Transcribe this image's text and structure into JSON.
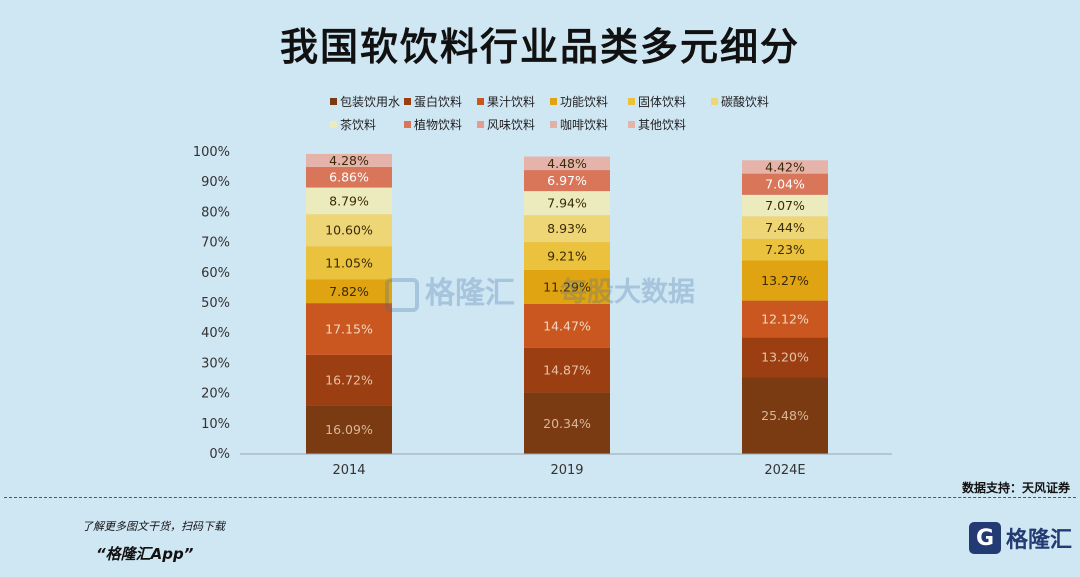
{
  "title": "我国软饮料行业品类多元细分",
  "source": "数据支持：天风证券",
  "promo": {
    "line1": "了解更多图文干货，扫码下载",
    "line2": "“格隆汇App”"
  },
  "brand": {
    "logo_letter": "G",
    "name": "格隆汇"
  },
  "watermarks": [
    "格隆汇",
    "每股大数据"
  ],
  "chart_data": {
    "type": "bar",
    "stacked": true,
    "percent_stacked": true,
    "title": "我国软饮料行业品类多元细分",
    "categories": [
      "2014",
      "2019",
      "2024E"
    ],
    "ylim": [
      0,
      100
    ],
    "yticks": [
      "0%",
      "10%",
      "20%",
      "30%",
      "40%",
      "50%",
      "60%",
      "70%",
      "80%",
      "90%",
      "100%"
    ],
    "legend_position": "top",
    "series": [
      {
        "name": "包装饮用水",
        "color": "#7a3b12",
        "label_color": "#d8b79a",
        "values": [
          16.09,
          20.34,
          25.48
        ]
      },
      {
        "name": "蛋白饮料",
        "color": "#9b3e12",
        "label_color": "#e6c3a8",
        "values": [
          16.72,
          14.87,
          13.2
        ]
      },
      {
        "name": "果汁饮料",
        "color": "#c9571f",
        "label_color": "#f5d6c0",
        "values": [
          17.15,
          14.47,
          12.12
        ]
      },
      {
        "name": "功能饮料",
        "color": "#e0a412",
        "label_color": "#3a2a08",
        "values": [
          7.82,
          11.29,
          13.27
        ]
      },
      {
        "name": "固体饮料",
        "color": "#ebc23e",
        "label_color": "#3a2a08",
        "values": [
          11.05,
          9.21,
          7.23
        ]
      },
      {
        "name": "碳酸饮料",
        "color": "#eed576",
        "label_color": "#3a2a08",
        "values": [
          10.6,
          8.93,
          7.44
        ]
      },
      {
        "name": "茶饮料",
        "color": "#ecebbe",
        "label_color": "#3a2a08",
        "values": [
          8.79,
          7.94,
          7.07
        ]
      },
      {
        "name": "植物饮料",
        "color": "#d9765a",
        "label_color": "#ffffff",
        "values": [
          6.86,
          6.97,
          7.04
        ]
      },
      {
        "name": "风味饮料",
        "color": "#e39c8e",
        "label_color": "#3a2a08",
        "values": [
          0,
          0,
          0
        ]
      },
      {
        "name": "咖啡饮料",
        "color": "#e2b0a6",
        "label_color": "#3a2a08",
        "values": [
          0,
          0,
          0
        ]
      },
      {
        "name": "其他饮料",
        "color": "#e6b3ab",
        "label_color": "#3a2a08",
        "values": [
          4.28,
          4.48,
          4.42
        ]
      }
    ],
    "data_labels": [
      [
        "16.09%",
        "16.72%",
        "17.15%",
        "7.82%",
        "11.05%",
        "10.60%",
        "8.79%",
        "6.86%",
        "",
        "",
        "4.28%"
      ],
      [
        "20.34%",
        "14.87%",
        "14.47%",
        "11.29%",
        "9.21%",
        "8.93%",
        "7.94%",
        "6.97%",
        "",
        "",
        "4.48%"
      ],
      [
        "25.48%",
        "13.20%",
        "12.12%",
        "13.27%",
        "7.23%",
        "7.44%",
        "7.07%",
        "7.04%",
        "",
        "",
        "4.42%"
      ]
    ]
  }
}
